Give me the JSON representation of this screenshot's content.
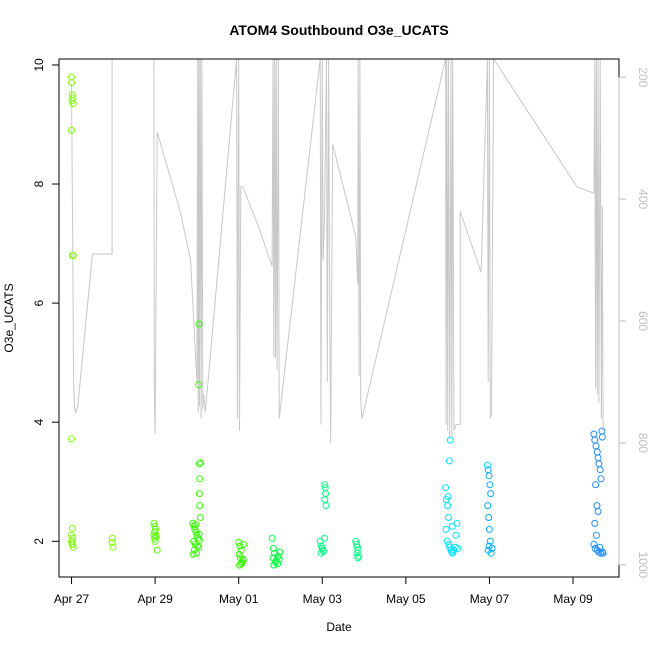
{
  "chart_data": {
    "type": "scatter",
    "title": "ATOM4 Southbound O3e_UCATS",
    "xlabel": "Date",
    "ylabel": "O3e_UCATS",
    "x_ticks": [
      "Apr 27",
      "Apr 29",
      "May 01",
      "May 03",
      "May 05",
      "May 07",
      "May 09"
    ],
    "y_ticks": [
      "2",
      "4",
      "6",
      "8",
      "10"
    ],
    "y2_ticks": [
      "200",
      "400",
      "600",
      "800",
      "1000"
    ],
    "xlim_days": [
      -0.3,
      13.1
    ],
    "ylim": [
      1.4,
      10.1
    ],
    "y2lim_pressure": [
      1020,
      170
    ],
    "y2_axis_color": "#bebebe",
    "pressure_line_color": "#c8c8c8",
    "series_colors": [
      "#7FFF00",
      "#5CFF00",
      "#33FF00",
      "#00FF3A",
      "#00FF7F",
      "#00FFCC",
      "#00E5FF",
      "#00B0FF",
      "#1E90FF"
    ],
    "note": "x in days since Apr 27 00:00",
    "points": [
      {
        "x": 0.0,
        "y": 9.8
      },
      {
        "x": 0.0,
        "y": 9.7
      },
      {
        "x": 0.02,
        "y": 9.5
      },
      {
        "x": 0.03,
        "y": 9.45
      },
      {
        "x": 0.01,
        "y": 9.4
      },
      {
        "x": 0.04,
        "y": 9.35
      },
      {
        "x": 0.0,
        "y": 8.9
      },
      {
        "x": 0.02,
        "y": 6.8
      },
      {
        "x": 0.04,
        "y": 6.8
      },
      {
        "x": 0.0,
        "y": 3.72
      },
      {
        "x": 0.02,
        "y": 2.22
      },
      {
        "x": 0.0,
        "y": 2.1
      },
      {
        "x": 0.03,
        "y": 2.05
      },
      {
        "x": 0.0,
        "y": 2.0
      },
      {
        "x": 0.01,
        "y": 1.95
      },
      {
        "x": 0.04,
        "y": 1.9
      },
      {
        "x": 0.02,
        "y": 1.95
      },
      {
        "x": 0.01,
        "y": 2.0
      },
      {
        "x": 0.98,
        "y": 2.05
      },
      {
        "x": 0.97,
        "y": 1.98
      },
      {
        "x": 0.99,
        "y": 1.9
      },
      {
        "x": 1.97,
        "y": 2.3
      },
      {
        "x": 1.99,
        "y": 2.25
      },
      {
        "x": 2.01,
        "y": 2.2
      },
      {
        "x": 1.98,
        "y": 2.15
      },
      {
        "x": 2.02,
        "y": 2.1
      },
      {
        "x": 1.99,
        "y": 2.05
      },
      {
        "x": 2.0,
        "y": 2.0
      },
      {
        "x": 1.97,
        "y": 2.1
      },
      {
        "x": 2.03,
        "y": 2.08
      },
      {
        "x": 2.05,
        "y": 1.85
      },
      {
        "x": 2.9,
        "y": 2.3
      },
      {
        "x": 2.93,
        "y": 2.25
      },
      {
        "x": 2.95,
        "y": 2.2
      },
      {
        "x": 2.98,
        "y": 2.15
      },
      {
        "x": 3.0,
        "y": 2.1
      },
      {
        "x": 3.02,
        "y": 2.05
      },
      {
        "x": 2.92,
        "y": 2.0
      },
      {
        "x": 2.96,
        "y": 1.95
      },
      {
        "x": 3.04,
        "y": 1.9
      },
      {
        "x": 2.94,
        "y": 1.85
      },
      {
        "x": 2.99,
        "y": 1.8
      },
      {
        "x": 2.91,
        "y": 1.78
      },
      {
        "x": 3.05,
        "y": 2.12
      },
      {
        "x": 3.06,
        "y": 2.02
      },
      {
        "x": 3.08,
        "y": 2.4
      },
      {
        "x": 3.07,
        "y": 2.6
      },
      {
        "x": 3.06,
        "y": 2.8
      },
      {
        "x": 3.07,
        "y": 3.05
      },
      {
        "x": 3.06,
        "y": 3.3
      },
      {
        "x": 3.09,
        "y": 3.32
      },
      {
        "x": 3.05,
        "y": 5.65
      },
      {
        "x": 3.04,
        "y": 4.63
      },
      {
        "x": 2.97,
        "y": 2.28
      },
      {
        "x": 3.01,
        "y": 1.92
      },
      {
        "x": 4.0,
        "y": 1.98
      },
      {
        "x": 4.03,
        "y": 1.92
      },
      {
        "x": 4.06,
        "y": 1.85
      },
      {
        "x": 4.01,
        "y": 1.78
      },
      {
        "x": 4.04,
        "y": 1.72
      },
      {
        "x": 4.08,
        "y": 1.65
      },
      {
        "x": 4.02,
        "y": 1.6
      },
      {
        "x": 4.07,
        "y": 1.62
      },
      {
        "x": 4.1,
        "y": 1.7
      },
      {
        "x": 4.12,
        "y": 1.95
      },
      {
        "x": 4.11,
        "y": 1.68
      },
      {
        "x": 4.8,
        "y": 2.05
      },
      {
        "x": 4.83,
        "y": 1.88
      },
      {
        "x": 4.86,
        "y": 1.8
      },
      {
        "x": 4.82,
        "y": 1.72
      },
      {
        "x": 4.88,
        "y": 1.65
      },
      {
        "x": 4.84,
        "y": 1.6
      },
      {
        "x": 4.9,
        "y": 1.68
      },
      {
        "x": 4.95,
        "y": 1.75
      },
      {
        "x": 4.98,
        "y": 1.82
      },
      {
        "x": 4.93,
        "y": 1.62
      },
      {
        "x": 4.97,
        "y": 1.7
      },
      {
        "x": 5.95,
        "y": 2.0
      },
      {
        "x": 5.98,
        "y": 1.92
      },
      {
        "x": 6.0,
        "y": 1.88
      },
      {
        "x": 6.03,
        "y": 1.83
      },
      {
        "x": 5.97,
        "y": 1.8
      },
      {
        "x": 6.02,
        "y": 1.85
      },
      {
        "x": 6.05,
        "y": 2.05
      },
      {
        "x": 6.06,
        "y": 2.95
      },
      {
        "x": 6.07,
        "y": 2.9
      },
      {
        "x": 6.08,
        "y": 2.8
      },
      {
        "x": 6.06,
        "y": 2.7
      },
      {
        "x": 6.09,
        "y": 2.6
      },
      {
        "x": 6.8,
        "y": 2.0
      },
      {
        "x": 6.82,
        "y": 1.95
      },
      {
        "x": 6.84,
        "y": 1.9
      },
      {
        "x": 6.86,
        "y": 1.85
      },
      {
        "x": 6.83,
        "y": 1.8
      },
      {
        "x": 6.87,
        "y": 1.75
      },
      {
        "x": 6.85,
        "y": 1.72
      },
      {
        "x": 8.95,
        "y": 2.9
      },
      {
        "x": 8.97,
        "y": 2.7
      },
      {
        "x": 9.0,
        "y": 2.6
      },
      {
        "x": 9.02,
        "y": 2.4
      },
      {
        "x": 8.96,
        "y": 2.2
      },
      {
        "x": 8.99,
        "y": 2.0
      },
      {
        "x": 9.03,
        "y": 1.95
      },
      {
        "x": 9.05,
        "y": 1.9
      },
      {
        "x": 9.08,
        "y": 1.85
      },
      {
        "x": 9.1,
        "y": 1.82
      },
      {
        "x": 9.12,
        "y": 1.8
      },
      {
        "x": 9.15,
        "y": 1.85
      },
      {
        "x": 9.18,
        "y": 1.9
      },
      {
        "x": 9.2,
        "y": 2.1
      },
      {
        "x": 9.22,
        "y": 2.3
      },
      {
        "x": 9.24,
        "y": 1.88
      },
      {
        "x": 9.06,
        "y": 3.7
      },
      {
        "x": 9.04,
        "y": 3.35
      },
      {
        "x": 9.01,
        "y": 2.75
      },
      {
        "x": 9.11,
        "y": 2.25
      },
      {
        "x": 9.95,
        "y": 3.28
      },
      {
        "x": 9.97,
        "y": 3.2
      },
      {
        "x": 9.99,
        "y": 3.1
      },
      {
        "x": 10.01,
        "y": 2.95
      },
      {
        "x": 10.03,
        "y": 2.8
      },
      {
        "x": 9.96,
        "y": 2.6
      },
      {
        "x": 9.98,
        "y": 2.4
      },
      {
        "x": 10.0,
        "y": 2.2
      },
      {
        "x": 10.02,
        "y": 2.0
      },
      {
        "x": 9.97,
        "y": 1.85
      },
      {
        "x": 10.04,
        "y": 1.8
      },
      {
        "x": 10.06,
        "y": 1.88
      },
      {
        "x": 9.99,
        "y": 1.92
      },
      {
        "x": 12.5,
        "y": 3.8
      },
      {
        "x": 12.52,
        "y": 3.7
      },
      {
        "x": 12.55,
        "y": 3.6
      },
      {
        "x": 12.58,
        "y": 3.5
      },
      {
        "x": 12.6,
        "y": 3.4
      },
      {
        "x": 12.62,
        "y": 3.3
      },
      {
        "x": 12.65,
        "y": 3.2
      },
      {
        "x": 12.67,
        "y": 3.05
      },
      {
        "x": 12.69,
        "y": 3.85
      },
      {
        "x": 12.7,
        "y": 3.75
      },
      {
        "x": 12.54,
        "y": 2.95
      },
      {
        "x": 12.57,
        "y": 2.6
      },
      {
        "x": 12.6,
        "y": 2.5
      },
      {
        "x": 12.52,
        "y": 2.3
      },
      {
        "x": 12.56,
        "y": 2.1
      },
      {
        "x": 12.5,
        "y": 1.95
      },
      {
        "x": 12.53,
        "y": 1.88
      },
      {
        "x": 12.58,
        "y": 1.85
      },
      {
        "x": 12.62,
        "y": 1.82
      },
      {
        "x": 12.66,
        "y": 1.8
      },
      {
        "x": 12.7,
        "y": 1.82
      },
      {
        "x": 12.72,
        "y": 1.8
      },
      {
        "x": 12.64,
        "y": 1.9
      }
    ],
    "pressure_path": [
      [
        0.0,
        210
      ],
      [
        0.03,
        490
      ],
      [
        0.05,
        700
      ],
      [
        0.07,
        740
      ],
      [
        0.1,
        750
      ],
      [
        0.15,
        740
      ],
      [
        0.5,
        490
      ],
      [
        0.97,
        490
      ],
      [
        0.97,
        170
      ],
      [
        0.98,
        170
      ],
      [
        1.97,
        170
      ],
      [
        1.98,
        720
      ],
      [
        2.0,
        785
      ],
      [
        2.05,
        290
      ],
      [
        2.6,
        420
      ],
      [
        2.85,
        500
      ],
      [
        3.0,
        700
      ],
      [
        3.02,
        170
      ],
      [
        3.03,
        750
      ],
      [
        3.05,
        170
      ],
      [
        3.06,
        740
      ],
      [
        3.08,
        170
      ],
      [
        3.1,
        760
      ],
      [
        3.12,
        170
      ],
      [
        3.14,
        745
      ],
      [
        3.16,
        720
      ],
      [
        3.2,
        750
      ],
      [
        3.95,
        170
      ],
      [
        3.97,
        760
      ],
      [
        4.0,
        170
      ],
      [
        4.02,
        780
      ],
      [
        4.05,
        380
      ],
      [
        4.1,
        380
      ],
      [
        4.5,
        450
      ],
      [
        4.8,
        510
      ],
      [
        4.82,
        170
      ],
      [
        4.84,
        660
      ],
      [
        4.86,
        170
      ],
      [
        4.88,
        660
      ],
      [
        4.9,
        170
      ],
      [
        4.92,
        680
      ],
      [
        4.95,
        170
      ],
      [
        4.97,
        760
      ],
      [
        5.95,
        170
      ],
      [
        5.97,
        770
      ],
      [
        6.0,
        170
      ],
      [
        6.02,
        500
      ],
      [
        6.05,
        440
      ],
      [
        6.1,
        170
      ],
      [
        6.12,
        700
      ],
      [
        6.15,
        170
      ],
      [
        6.18,
        600
      ],
      [
        6.2,
        800
      ],
      [
        6.25,
        310
      ],
      [
        6.8,
        460
      ],
      [
        6.85,
        540
      ],
      [
        6.86,
        170
      ],
      [
        6.88,
        690
      ],
      [
        6.9,
        170
      ],
      [
        6.92,
        730
      ],
      [
        6.95,
        760
      ],
      [
        8.95,
        170
      ],
      [
        8.96,
        770
      ],
      [
        8.98,
        170
      ],
      [
        9.0,
        780
      ],
      [
        9.02,
        170
      ],
      [
        9.05,
        790
      ],
      [
        9.08,
        170
      ],
      [
        9.1,
        790
      ],
      [
        9.12,
        170
      ],
      [
        9.15,
        780
      ],
      [
        9.2,
        770
      ],
      [
        9.3,
        770
      ],
      [
        9.3,
        420
      ],
      [
        9.8,
        520
      ],
      [
        9.95,
        170
      ],
      [
        9.97,
        700
      ],
      [
        10.0,
        170
      ],
      [
        10.02,
        760
      ],
      [
        10.05,
        750
      ],
      [
        10.1,
        170
      ],
      [
        12.1,
        380
      ],
      [
        12.5,
        390
      ],
      [
        12.52,
        170
      ],
      [
        12.54,
        710
      ],
      [
        12.56,
        170
      ],
      [
        12.58,
        720
      ],
      [
        12.6,
        170
      ],
      [
        12.62,
        735
      ],
      [
        12.65,
        170
      ],
      [
        12.68,
        760
      ],
      [
        12.7,
        410
      ],
      [
        12.72,
        780
      ]
    ]
  }
}
